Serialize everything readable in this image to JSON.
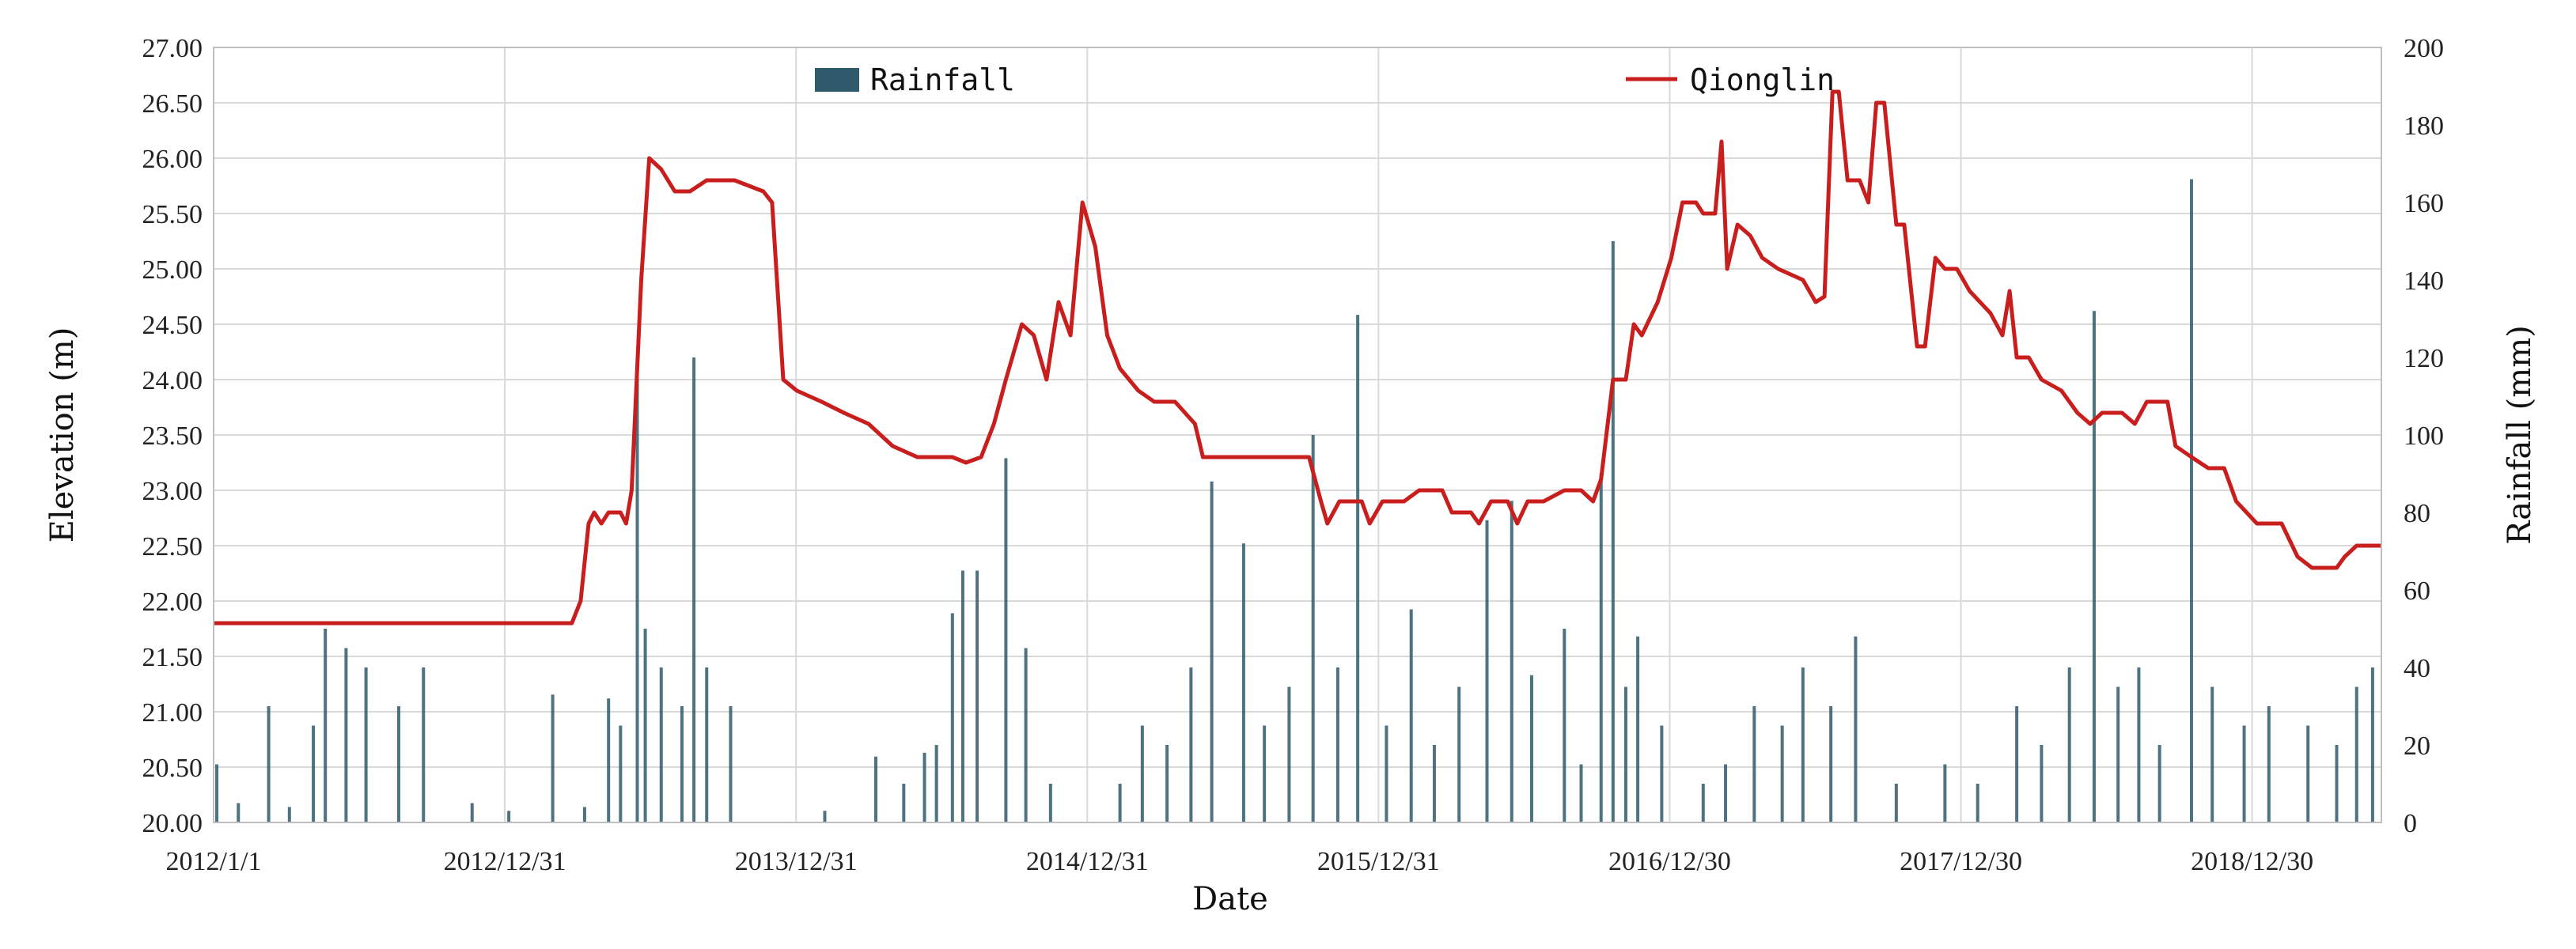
{
  "chart_data": {
    "type": "line",
    "xlabel": "Date",
    "ylabel_left": "Elevation (m)",
    "ylabel_right": "Rainfall (mm)",
    "x_range": [
      "2012/1/1",
      "2019/6/10"
    ],
    "x_ticks": [
      "2012/1/1",
      "2012/12/31",
      "2013/12/31",
      "2014/12/31",
      "2015/12/31",
      "2016/12/30",
      "2017/12/30",
      "2018/12/30"
    ],
    "ylim_left": [
      20.0,
      27.0
    ],
    "ylim_right": [
      0,
      200
    ],
    "y_ticks_left": [
      "20.00",
      "20.50",
      "21.00",
      "21.50",
      "22.00",
      "22.50",
      "23.00",
      "23.50",
      "24.00",
      "24.50",
      "25.00",
      "25.50",
      "26.00",
      "26.50",
      "27.00"
    ],
    "y_ticks_right": [
      "0",
      "20",
      "40",
      "60",
      "80",
      "100",
      "120",
      "140",
      "160",
      "180",
      "200"
    ],
    "grid": true,
    "legend_placement": "top",
    "series": [
      {
        "name": "Rainfall",
        "kind": "bar",
        "axis": "right",
        "color": "#2e5a6b",
        "points": [
          [
            "2012/1/5",
            15
          ],
          [
            "2012/2/1",
            5
          ],
          [
            "2012/3/10",
            30
          ],
          [
            "2012/4/5",
            4
          ],
          [
            "2012/5/5",
            25
          ],
          [
            "2012/5/20",
            50
          ],
          [
            "2012/6/15",
            45
          ],
          [
            "2012/7/10",
            40
          ],
          [
            "2012/8/20",
            30
          ],
          [
            "2012/9/20",
            40
          ],
          [
            "2012/11/20",
            5
          ],
          [
            "2013/1/5",
            3
          ],
          [
            "2013/3/1",
            33
          ],
          [
            "2013/4/10",
            4
          ],
          [
            "2013/5/10",
            32
          ],
          [
            "2013/5/25",
            25
          ],
          [
            "2013/6/15",
            118
          ],
          [
            "2013/6/25",
            50
          ],
          [
            "2013/7/15",
            40
          ],
          [
            "2013/8/10",
            30
          ],
          [
            "2013/8/25",
            120
          ],
          [
            "2013/9/10",
            40
          ],
          [
            "2013/10/10",
            30
          ],
          [
            "2014/2/5",
            3
          ],
          [
            "2014/4/10",
            17
          ],
          [
            "2014/5/15",
            10
          ],
          [
            "2014/6/10",
            18
          ],
          [
            "2014/6/25",
            20
          ],
          [
            "2014/7/15",
            54
          ],
          [
            "2014/7/28",
            65
          ],
          [
            "2014/8/15",
            65
          ],
          [
            "2014/9/20",
            94
          ],
          [
            "2014/10/15",
            45
          ],
          [
            "2014/11/15",
            10
          ],
          [
            "2015/2/10",
            10
          ],
          [
            "2015/3/10",
            25
          ],
          [
            "2015/4/10",
            20
          ],
          [
            "2015/5/10",
            40
          ],
          [
            "2015/6/5",
            88
          ],
          [
            "2015/7/15",
            72
          ],
          [
            "2015/8/10",
            25
          ],
          [
            "2015/9/10",
            35
          ],
          [
            "2015/10/10",
            100
          ],
          [
            "2015/11/10",
            40
          ],
          [
            "2015/12/5",
            131
          ],
          [
            "2016/1/10",
            25
          ],
          [
            "2016/2/10",
            55
          ],
          [
            "2016/3/10",
            20
          ],
          [
            "2016/4/10",
            35
          ],
          [
            "2016/5/15",
            78
          ],
          [
            "2016/6/15",
            83
          ],
          [
            "2016/7/10",
            38
          ],
          [
            "2016/8/20",
            50
          ],
          [
            "2016/9/10",
            15
          ],
          [
            "2016/10/5",
            90
          ],
          [
            "2016/10/20",
            150
          ],
          [
            "2016/11/5",
            35
          ],
          [
            "2016/11/20",
            48
          ],
          [
            "2016/12/20",
            25
          ],
          [
            "2017/2/10",
            10
          ],
          [
            "2017/3/10",
            15
          ],
          [
            "2017/4/15",
            30
          ],
          [
            "2017/5/20",
            25
          ],
          [
            "2017/6/15",
            40
          ],
          [
            "2017/7/20",
            30
          ],
          [
            "2017/8/20",
            48
          ],
          [
            "2017/10/10",
            10
          ],
          [
            "2017/12/10",
            15
          ],
          [
            "2018/1/20",
            10
          ],
          [
            "2018/3/10",
            30
          ],
          [
            "2018/4/10",
            20
          ],
          [
            "2018/5/15",
            40
          ],
          [
            "2018/6/15",
            132
          ],
          [
            "2018/7/15",
            35
          ],
          [
            "2018/8/10",
            40
          ],
          [
            "2018/9/5",
            20
          ],
          [
            "2018/10/15",
            166
          ],
          [
            "2018/11/10",
            35
          ],
          [
            "2018/12/20",
            25
          ],
          [
            "2019/1/20",
            30
          ],
          [
            "2019/3/10",
            25
          ],
          [
            "2019/4/15",
            20
          ],
          [
            "2019/5/10",
            35
          ],
          [
            "2019/5/30",
            40
          ]
        ]
      },
      {
        "name": "Qionglin",
        "kind": "line",
        "axis": "left",
        "color": "#c81e1e",
        "points": [
          [
            "2012/1/1",
            21.8
          ],
          [
            "2013/3/25",
            21.8
          ],
          [
            "2013/4/5",
            22.0
          ],
          [
            "2013/4/15",
            22.7
          ],
          [
            "2013/4/22",
            22.8
          ],
          [
            "2013/5/1",
            22.7
          ],
          [
            "2013/5/10",
            22.8
          ],
          [
            "2013/5/25",
            22.8
          ],
          [
            "2013/6/1",
            22.7
          ],
          [
            "2013/6/8",
            23.0
          ],
          [
            "2013/6/20",
            24.9
          ],
          [
            "2013/6/30",
            26.0
          ],
          [
            "2013/7/15",
            25.9
          ],
          [
            "2013/8/1",
            25.7
          ],
          [
            "2013/8/20",
            25.7
          ],
          [
            "2013/9/10",
            25.8
          ],
          [
            "2013/10/15",
            25.8
          ],
          [
            "2013/11/20",
            25.7
          ],
          [
            "2013/12/1",
            25.6
          ],
          [
            "2013/12/15",
            24.0
          ],
          [
            "2014/1/1",
            23.9
          ],
          [
            "2014/2/1",
            23.8
          ],
          [
            "2014/3/1",
            23.7
          ],
          [
            "2014/4/1",
            23.6
          ],
          [
            "2014/5/1",
            23.4
          ],
          [
            "2014/6/1",
            23.3
          ],
          [
            "2014/7/15",
            23.3
          ],
          [
            "2014/8/1",
            23.25
          ],
          [
            "2014/8/20",
            23.3
          ],
          [
            "2014/9/5",
            23.6
          ],
          [
            "2014/9/20",
            24.0
          ],
          [
            "2014/10/10",
            24.5
          ],
          [
            "2014/10/25",
            24.4
          ],
          [
            "2014/11/10",
            24.0
          ],
          [
            "2014/11/25",
            24.7
          ],
          [
            "2014/12/10",
            24.4
          ],
          [
            "2014/12/25",
            25.6
          ],
          [
            "2015/1/10",
            25.2
          ],
          [
            "2015/1/25",
            24.4
          ],
          [
            "2015/2/10",
            24.1
          ],
          [
            "2015/3/5",
            23.9
          ],
          [
            "2015/3/25",
            23.8
          ],
          [
            "2015/4/20",
            23.8
          ],
          [
            "2015/5/15",
            23.6
          ],
          [
            "2015/5/25",
            23.3
          ],
          [
            "2015/10/5",
            23.3
          ],
          [
            "2015/10/20",
            22.9
          ],
          [
            "2015/10/28",
            22.7
          ],
          [
            "2015/11/12",
            22.9
          ],
          [
            "2015/12/10",
            22.9
          ],
          [
            "2015/12/20",
            22.7
          ],
          [
            "2016/1/5",
            22.9
          ],
          [
            "2016/2/1",
            22.9
          ],
          [
            "2016/2/20",
            23.0
          ],
          [
            "2016/3/20",
            23.0
          ],
          [
            "2016/4/1",
            22.8
          ],
          [
            "2016/4/25",
            22.8
          ],
          [
            "2016/5/5",
            22.7
          ],
          [
            "2016/5/20",
            22.9
          ],
          [
            "2016/6/10",
            22.9
          ],
          [
            "2016/6/22",
            22.7
          ],
          [
            "2016/7/5",
            22.9
          ],
          [
            "2016/7/25",
            22.9
          ],
          [
            "2016/8/20",
            23.0
          ],
          [
            "2016/9/10",
            23.0
          ],
          [
            "2016/9/25",
            22.9
          ],
          [
            "2016/10/5",
            23.1
          ],
          [
            "2016/10/20",
            24.0
          ],
          [
            "2016/11/5",
            24.0
          ],
          [
            "2016/11/15",
            24.5
          ],
          [
            "2016/11/25",
            24.4
          ],
          [
            "2016/12/15",
            24.7
          ],
          [
            "2017/1/1",
            25.1
          ],
          [
            "2017/1/15",
            25.6
          ],
          [
            "2017/2/1",
            25.6
          ],
          [
            "2017/2/10",
            25.5
          ],
          [
            "2017/2/25",
            25.5
          ],
          [
            "2017/3/5",
            26.15
          ],
          [
            "2017/3/12",
            25.0
          ],
          [
            "2017/3/25",
            25.4
          ],
          [
            "2017/4/10",
            25.3
          ],
          [
            "2017/4/25",
            25.1
          ],
          [
            "2017/5/15",
            25.0
          ],
          [
            "2017/6/15",
            24.9
          ],
          [
            "2017/7/1",
            24.7
          ],
          [
            "2017/7/12",
            24.75
          ],
          [
            "2017/7/22",
            26.6
          ],
          [
            "2017/7/30",
            26.6
          ],
          [
            "2017/8/10",
            25.8
          ],
          [
            "2017/8/25",
            25.8
          ],
          [
            "2017/9/5",
            25.6
          ],
          [
            "2017/9/15",
            26.5
          ],
          [
            "2017/9/25",
            26.5
          ],
          [
            "2017/10/10",
            25.4
          ],
          [
            "2017/10/20",
            25.4
          ],
          [
            "2017/11/5",
            24.3
          ],
          [
            "2017/11/15",
            24.3
          ],
          [
            "2017/11/28",
            25.1
          ],
          [
            "2017/12/10",
            25.0
          ],
          [
            "2017/12/25",
            25.0
          ],
          [
            "2018/1/10",
            24.8
          ],
          [
            "2018/2/5",
            24.6
          ],
          [
            "2018/2/20",
            24.4
          ],
          [
            "2018/3/1",
            24.8
          ],
          [
            "2018/3/10",
            24.2
          ],
          [
            "2018/3/25",
            24.2
          ],
          [
            "2018/4/10",
            24.0
          ],
          [
            "2018/5/5",
            23.9
          ],
          [
            "2018/5/25",
            23.7
          ],
          [
            "2018/6/10",
            23.6
          ],
          [
            "2018/6/25",
            23.7
          ],
          [
            "2018/7/20",
            23.7
          ],
          [
            "2018/8/5",
            23.6
          ],
          [
            "2018/8/20",
            23.8
          ],
          [
            "2018/9/15",
            23.8
          ],
          [
            "2018/9/25",
            23.4
          ],
          [
            "2018/10/15",
            23.3
          ],
          [
            "2018/11/5",
            23.2
          ],
          [
            "2018/11/25",
            23.2
          ],
          [
            "2018/12/10",
            22.9
          ],
          [
            "2019/1/5",
            22.7
          ],
          [
            "2019/2/5",
            22.7
          ],
          [
            "2019/2/25",
            22.4
          ],
          [
            "2019/3/15",
            22.3
          ],
          [
            "2019/4/15",
            22.3
          ],
          [
            "2019/4/25",
            22.4
          ],
          [
            "2019/5/10",
            22.5
          ],
          [
            "2019/6/10",
            22.5
          ]
        ]
      }
    ]
  }
}
